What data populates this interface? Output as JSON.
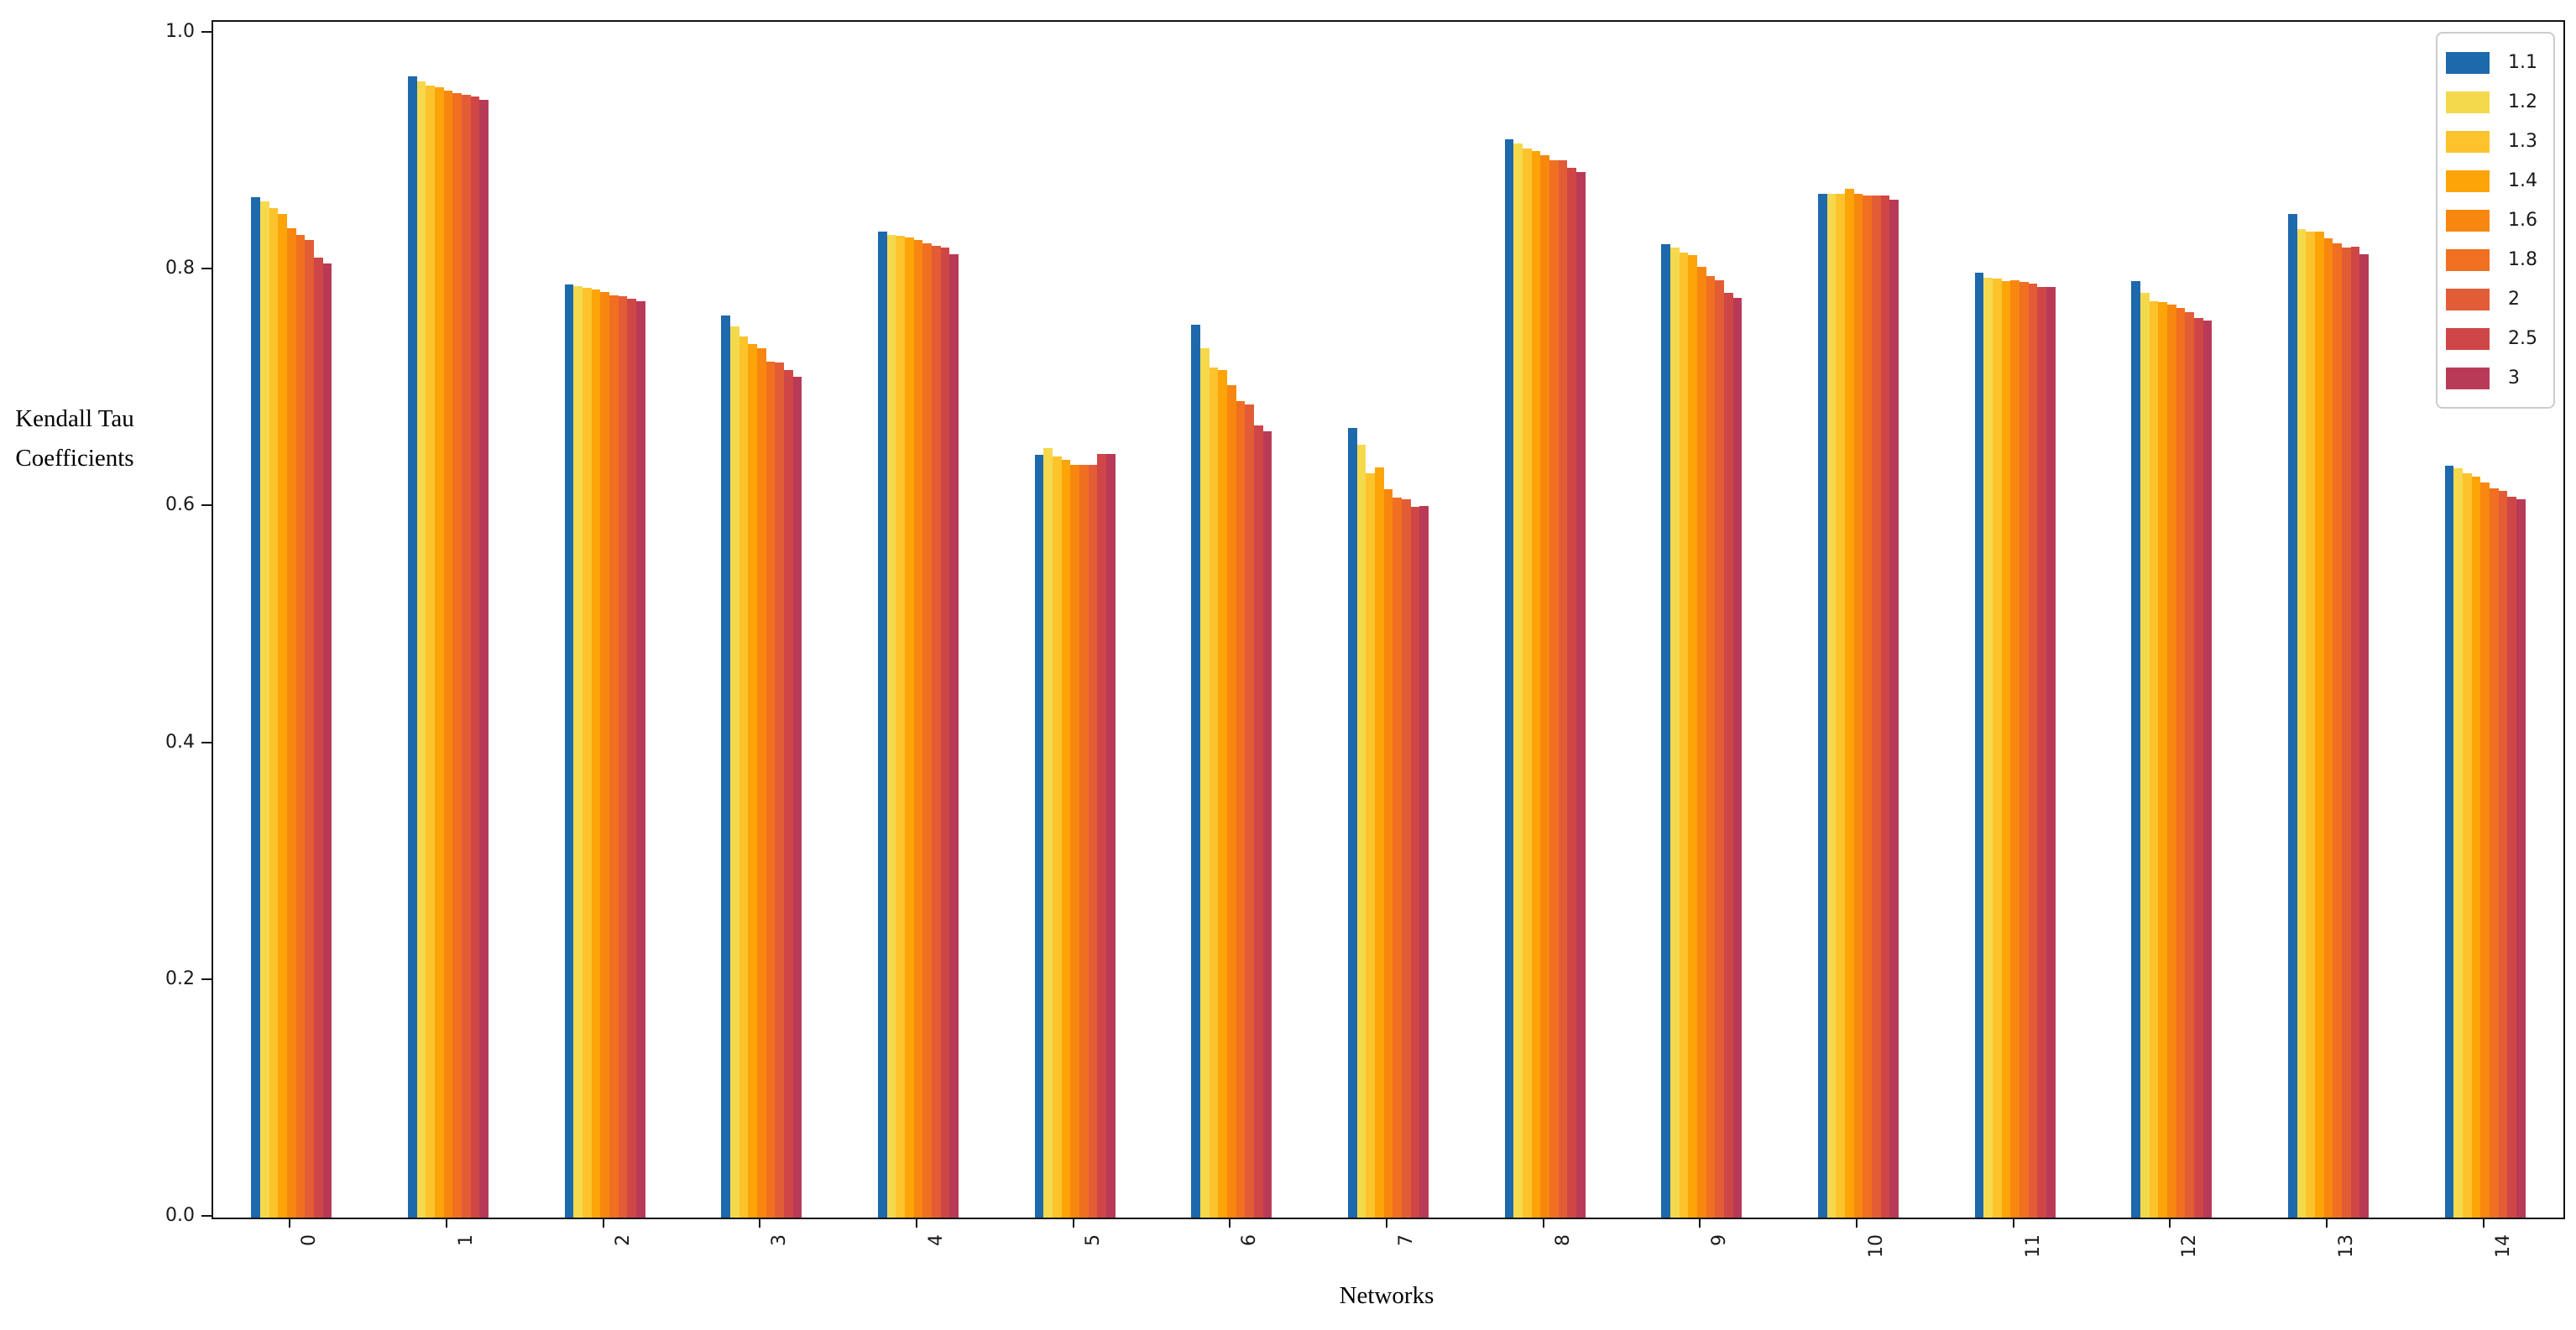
{
  "chart_data": {
    "type": "bar",
    "title": "",
    "xlabel": "Networks",
    "ylabel": "Kendall Tau\nCoefficients",
    "categories": [
      "0",
      "1",
      "2",
      "3",
      "4",
      "5",
      "6",
      "7",
      "8",
      "9",
      "10",
      "11",
      "12",
      "13",
      "14"
    ],
    "ylim": [
      0.0,
      1.01
    ],
    "yticks": [
      "0.0",
      "0.2",
      "0.4",
      "0.6",
      "0.8",
      "1.0"
    ],
    "grid": false,
    "legend_position": "upper right",
    "series": [
      {
        "name": "1.1",
        "color": "#1e68ac",
        "values": [
          0.862,
          0.964,
          0.788,
          0.762,
          0.833,
          0.644,
          0.754,
          0.667,
          0.911,
          0.822,
          0.865,
          0.798,
          0.791,
          0.848,
          0.635
        ]
      },
      {
        "name": "1.2",
        "color": "#f5d94d",
        "values": [
          0.858,
          0.96,
          0.787,
          0.753,
          0.83,
          0.65,
          0.734,
          0.653,
          0.907,
          0.819,
          0.865,
          0.794,
          0.781,
          0.835,
          0.633
        ]
      },
      {
        "name": "1.3",
        "color": "#fcc32c",
        "values": [
          0.853,
          0.956,
          0.785,
          0.744,
          0.829,
          0.643,
          0.718,
          0.629,
          0.903,
          0.815,
          0.865,
          0.793,
          0.774,
          0.833,
          0.629
        ]
      },
      {
        "name": "1.4",
        "color": "#fda408",
        "values": [
          0.848,
          0.955,
          0.784,
          0.738,
          0.828,
          0.64,
          0.716,
          0.634,
          0.901,
          0.813,
          0.869,
          0.791,
          0.773,
          0.833,
          0.626
        ]
      },
      {
        "name": "1.6",
        "color": "#f8870f",
        "values": [
          0.836,
          0.952,
          0.782,
          0.734,
          0.826,
          0.636,
          0.703,
          0.615,
          0.897,
          0.803,
          0.865,
          0.792,
          0.771,
          0.827,
          0.621
        ]
      },
      {
        "name": "1.8",
        "color": "#f06f21",
        "values": [
          0.83,
          0.95,
          0.779,
          0.723,
          0.823,
          0.636,
          0.69,
          0.608,
          0.893,
          0.795,
          0.863,
          0.79,
          0.768,
          0.823,
          0.616
        ]
      },
      {
        "name": "2",
        "color": "#e25c36",
        "values": [
          0.826,
          0.948,
          0.778,
          0.722,
          0.821,
          0.636,
          0.687,
          0.607,
          0.893,
          0.792,
          0.863,
          0.789,
          0.765,
          0.819,
          0.614
        ]
      },
      {
        "name": "2.5",
        "color": "#cf4646",
        "values": [
          0.811,
          0.947,
          0.776,
          0.716,
          0.819,
          0.645,
          0.669,
          0.6,
          0.887,
          0.781,
          0.863,
          0.786,
          0.76,
          0.82,
          0.609
        ]
      },
      {
        "name": "3",
        "color": "#b83a57",
        "values": [
          0.806,
          0.944,
          0.774,
          0.71,
          0.814,
          0.645,
          0.664,
          0.601,
          0.883,
          0.777,
          0.86,
          0.786,
          0.758,
          0.814,
          0.607
        ]
      }
    ]
  }
}
